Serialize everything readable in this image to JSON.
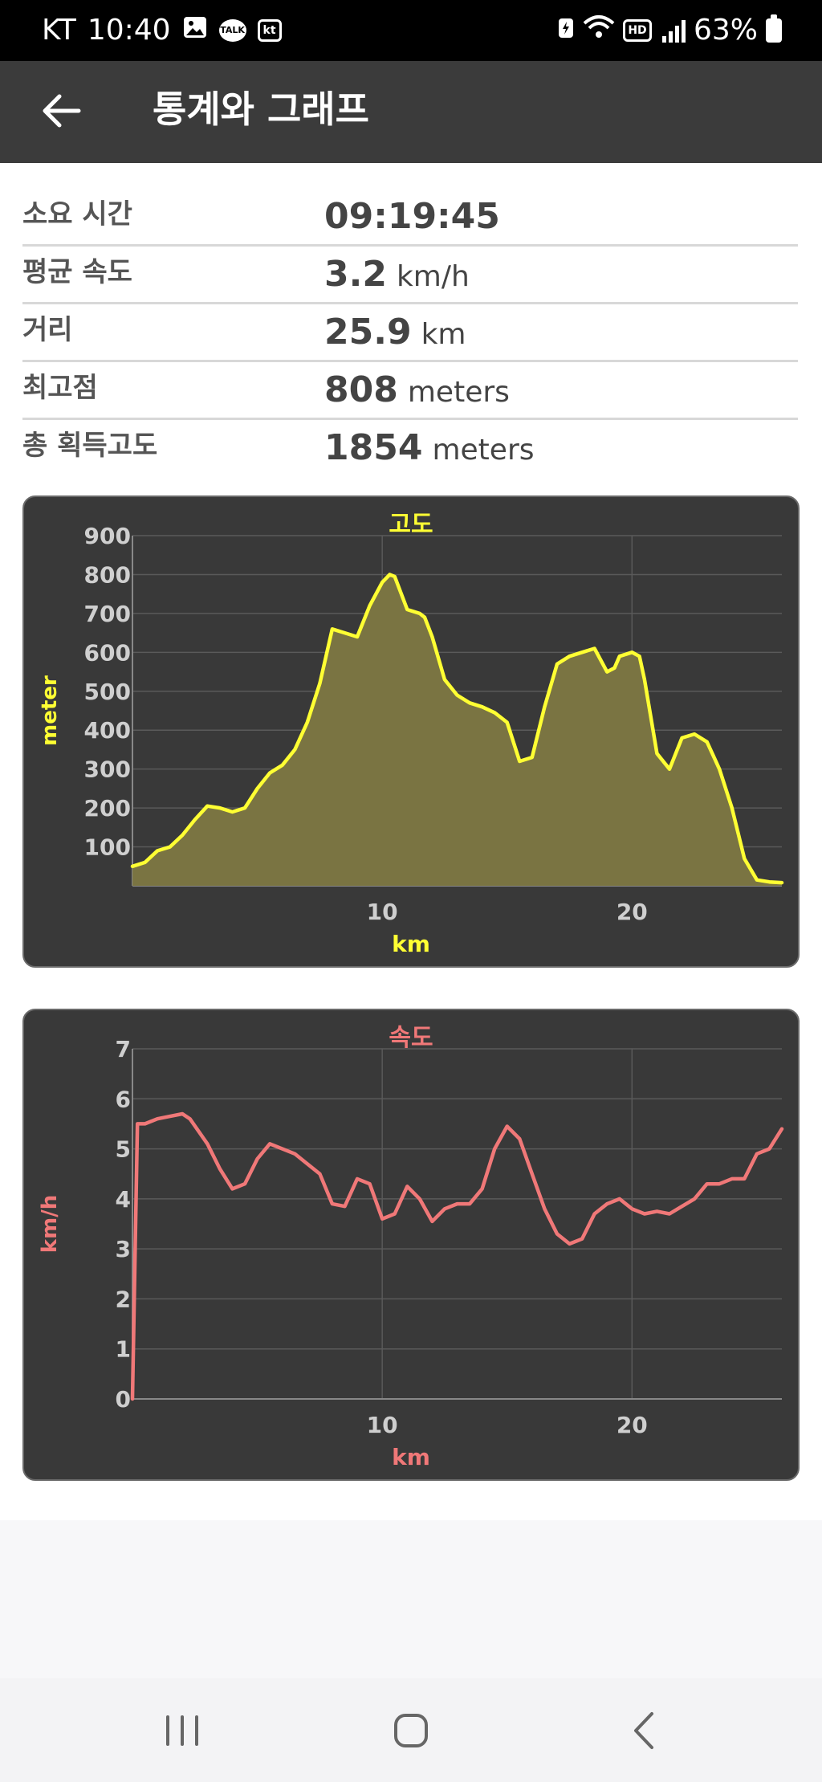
{
  "status_bar": {
    "carrier": "KT",
    "time": "10:40",
    "talk_badge": "TALK",
    "kt_badge": "kt",
    "hd_badge": "HD",
    "battery": "63%"
  },
  "app_bar": {
    "title": "통계와 그래프"
  },
  "stats": [
    {
      "label": "소요 시간",
      "value": "09:19:45",
      "unit": ""
    },
    {
      "label": "평균 속도",
      "value": "3.2",
      "unit": "km/h"
    },
    {
      "label": "거리",
      "value": "25.9",
      "unit": "km"
    },
    {
      "label": "최고점",
      "value": "808",
      "unit": "meters"
    },
    {
      "label": "총 획득고도",
      "value": "1854",
      "unit": "meters"
    }
  ],
  "chart_data": [
    {
      "type": "area",
      "title": "고도",
      "xlabel": "km",
      "ylabel": "meter",
      "xlim": [
        0,
        26
      ],
      "ylim": [
        0,
        900
      ],
      "x_ticks": [
        10,
        20
      ],
      "y_ticks": [
        100,
        200,
        300,
        400,
        500,
        600,
        700,
        800,
        900
      ],
      "grid": true,
      "color": "#ffff33",
      "fill_color": "#7a7442",
      "series": [
        {
          "x": [
            0,
            0.5,
            1,
            1.5,
            2,
            2.5,
            3,
            3.5,
            4,
            4.5,
            5,
            5.5,
            6,
            6.5,
            7,
            7.5,
            8,
            8.5,
            9,
            9.5,
            10,
            10.3,
            10.5,
            11,
            11.5,
            11.7,
            12,
            12.5,
            13,
            13.5,
            14,
            14.5,
            15,
            15.5,
            16,
            16.5,
            17,
            17.5,
            18,
            18.5,
            19,
            19.3,
            19.5,
            20,
            20.3,
            20.5,
            21,
            21.5,
            22,
            22.5,
            23,
            23.5,
            24,
            24.5,
            25,
            25.5,
            26
          ],
          "y": [
            50,
            60,
            90,
            100,
            130,
            170,
            205,
            200,
            190,
            200,
            250,
            290,
            310,
            350,
            420,
            520,
            660,
            650,
            640,
            720,
            780,
            800,
            795,
            710,
            700,
            690,
            640,
            530,
            490,
            470,
            460,
            445,
            420,
            320,
            330,
            460,
            570,
            590,
            600,
            610,
            550,
            560,
            590,
            600,
            590,
            530,
            340,
            300,
            380,
            390,
            370,
            300,
            200,
            70,
            15,
            10,
            8
          ]
        }
      ]
    },
    {
      "type": "line",
      "title": "속도",
      "xlabel": "km",
      "ylabel": "km/h",
      "xlim": [
        0,
        26
      ],
      "ylim": [
        0,
        7
      ],
      "x_ticks": [
        10,
        20
      ],
      "y_ticks": [
        0,
        1,
        2,
        3,
        4,
        5,
        6,
        7
      ],
      "grid": true,
      "color": "#f07878",
      "series": [
        {
          "x": [
            0,
            0.2,
            0.5,
            1,
            1.5,
            2,
            2.3,
            3,
            3.5,
            4,
            4.5,
            5,
            5.5,
            6,
            6.5,
            7,
            7.5,
            8,
            8.5,
            9,
            9.5,
            10,
            10.5,
            11,
            11.5,
            12,
            12.5,
            13,
            13.5,
            14,
            14.5,
            15,
            15.5,
            16,
            16.5,
            17,
            17.5,
            18,
            18.5,
            19,
            19.5,
            20,
            20.5,
            21,
            21.5,
            22,
            22.5,
            23,
            23.5,
            24,
            24.5,
            25,
            25.5,
            26
          ],
          "y": [
            0,
            5.5,
            5.5,
            5.6,
            5.65,
            5.7,
            5.6,
            5.1,
            4.6,
            4.2,
            4.3,
            4.8,
            5.1,
            5.0,
            4.9,
            4.7,
            4.5,
            3.9,
            3.85,
            4.4,
            4.3,
            3.6,
            3.7,
            4.25,
            4.0,
            3.55,
            3.8,
            3.9,
            3.9,
            4.2,
            5.0,
            5.45,
            5.2,
            4.5,
            3.8,
            3.3,
            3.1,
            3.2,
            3.7,
            3.9,
            4.0,
            3.8,
            3.7,
            3.75,
            3.7,
            3.85,
            4.0,
            4.3,
            4.3,
            4.4,
            4.4,
            4.9,
            5.0,
            5.4
          ]
        }
      ]
    }
  ]
}
